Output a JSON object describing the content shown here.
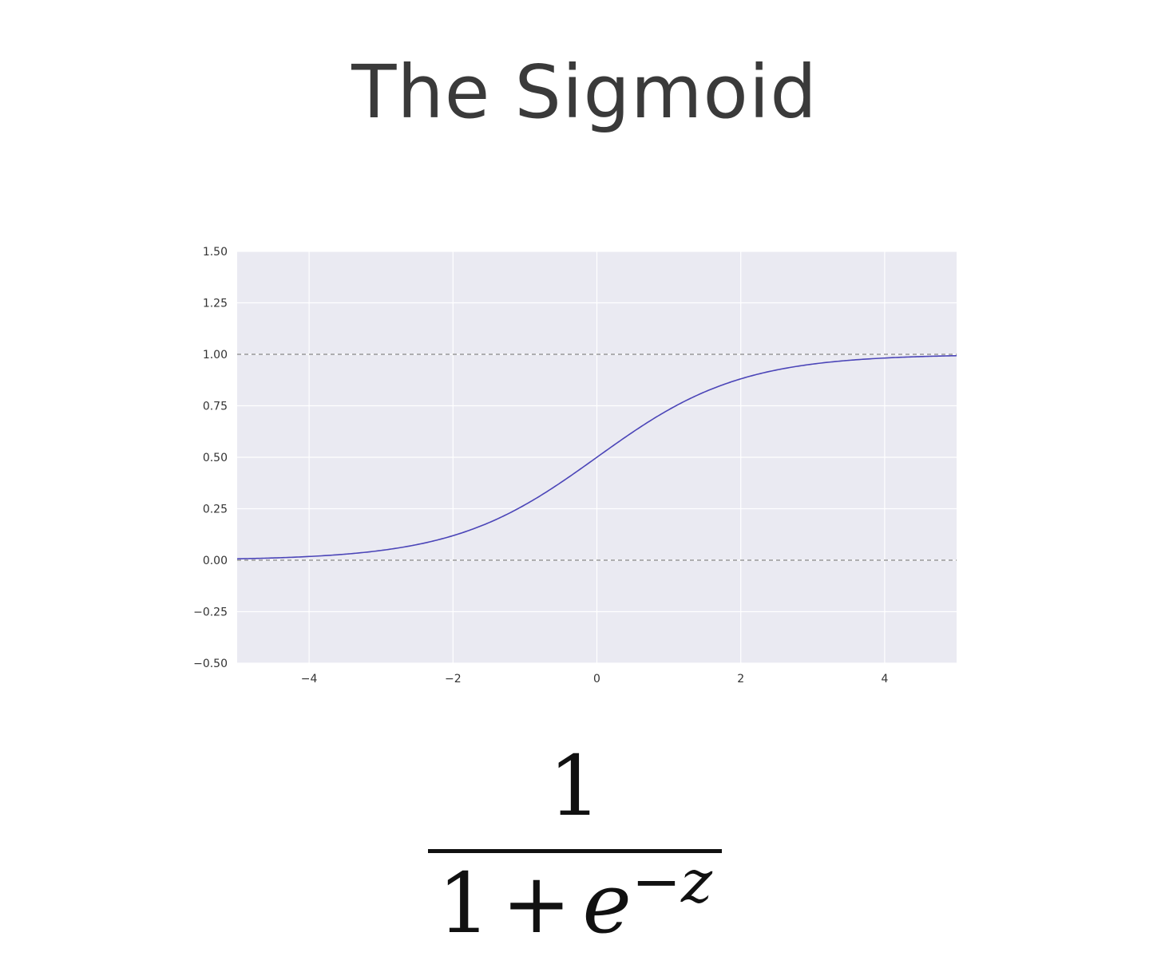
{
  "title": "The Sigmoid",
  "chart_data": {
    "type": "line",
    "title": "",
    "xlabel": "",
    "ylabel": "",
    "xlim": [
      -5,
      5
    ],
    "ylim": [
      -0.5,
      1.5
    ],
    "xticks": [
      "−4",
      "−2",
      "0",
      "2",
      "4"
    ],
    "xtick_values": [
      -4,
      -2,
      0,
      2,
      4
    ],
    "yticks": [
      "1.50",
      "1.25",
      "1.00",
      "0.75",
      "0.50",
      "0.25",
      "0.00",
      "−0.25",
      "−0.50"
    ],
    "ytick_values": [
      1.5,
      1.25,
      1.0,
      0.75,
      0.5,
      0.25,
      0.0,
      -0.25,
      -0.5
    ],
    "grid": true,
    "reference_lines": [
      {
        "y": 1.0,
        "style": "dashed"
      },
      {
        "y": 0.0,
        "style": "dashed"
      }
    ],
    "series": [
      {
        "function": "sigmoid",
        "color": "#4b45b8",
        "x": [
          -5,
          -4,
          -3,
          -2,
          -1,
          0,
          1,
          2,
          3,
          4,
          5
        ],
        "y": [
          0.0067,
          0.018,
          0.047,
          0.119,
          0.269,
          0.5,
          0.731,
          0.881,
          0.953,
          0.982,
          0.9933
        ]
      }
    ],
    "colors": {
      "plot_background": "#eaeaf2",
      "grid": "#ffffff",
      "reference_line": "#888888"
    }
  },
  "formula": {
    "numerator": "1",
    "denominator_one": "1",
    "plus": "+",
    "base": "e",
    "minus": "−",
    "exponent_var": "z"
  }
}
